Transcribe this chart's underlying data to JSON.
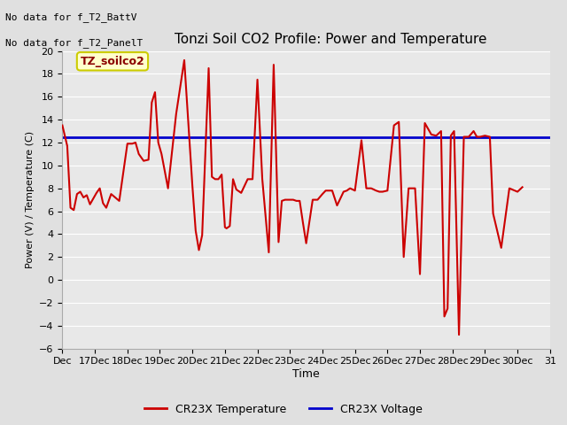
{
  "title": "Tonzi Soil CO2 Profile: Power and Temperature",
  "ylabel": "Power (V) / Temperature (C)",
  "xlabel": "Time",
  "no_data_text_1": "No data for f_T2_BattV",
  "no_data_text_2": "No data for f_T2_PanelT",
  "legend_label_box": "TZ_soilco2",
  "ylim": [
    -6,
    20
  ],
  "yticks": [
    -6,
    -4,
    -2,
    0,
    2,
    4,
    6,
    8,
    10,
    12,
    14,
    16,
    18,
    20
  ],
  "xtick_labels": [
    "Dec",
    "17Dec",
    "18Dec",
    "19Dec",
    "20Dec",
    "21Dec",
    "22Dec",
    "23Dec",
    "24Dec",
    "25Dec",
    "26Dec",
    "27Dec",
    "28Dec",
    "29Dec",
    "30Dec",
    "31"
  ],
  "bg_color": "#e0e0e0",
  "plot_bg_color": "#e8e8e8",
  "grid_color": "#ffffff",
  "voltage_value": 12.5,
  "voltage_color": "#0000cc",
  "temp_color": "#cc0000",
  "legend_temp": "CR23X Temperature",
  "legend_volt": "CR23X Voltage",
  "temp_x": [
    0.0,
    0.15,
    0.25,
    0.35,
    0.45,
    0.55,
    0.65,
    0.75,
    0.85,
    0.95,
    1.05,
    1.15,
    1.25,
    1.35,
    1.5,
    1.75,
    2.0,
    2.15,
    2.25,
    2.35,
    2.5,
    2.65,
    2.75,
    2.85,
    2.95,
    3.05,
    3.25,
    3.5,
    3.75,
    4.0,
    4.1,
    4.2,
    4.3,
    4.5,
    4.6,
    4.7,
    4.8,
    4.9,
    5.0,
    5.05,
    5.1,
    5.15,
    5.25,
    5.35,
    5.5,
    5.7,
    5.85,
    6.0,
    6.15,
    6.35,
    6.5,
    6.65,
    6.75,
    6.85,
    7.0,
    7.1,
    7.2,
    7.3,
    7.4,
    7.5,
    7.7,
    7.85,
    8.0,
    8.1,
    8.2,
    8.3,
    8.45,
    8.55,
    8.65,
    8.75,
    8.85,
    9.0,
    9.2,
    9.35,
    9.5,
    9.65,
    9.75,
    9.85,
    10.0,
    10.2,
    10.35,
    10.5,
    10.65,
    10.75,
    10.85,
    11.0,
    11.15,
    11.25,
    11.35,
    11.5,
    11.65,
    11.75,
    11.85,
    11.95,
    12.05,
    12.2,
    12.35,
    12.5,
    12.65,
    12.75,
    12.85,
    13.0,
    13.15,
    13.25,
    13.5,
    13.75,
    14.0,
    14.15
  ],
  "temp_y": [
    13.5,
    11.7,
    6.3,
    6.1,
    7.5,
    7.7,
    7.2,
    7.4,
    6.6,
    7.1,
    7.6,
    8.0,
    6.7,
    6.3,
    7.5,
    6.9,
    11.9,
    11.9,
    12.0,
    11.0,
    10.4,
    10.5,
    15.5,
    16.4,
    12.0,
    11.0,
    8.0,
    14.5,
    19.2,
    8.2,
    4.3,
    2.6,
    3.9,
    18.5,
    9.0,
    8.8,
    8.8,
    9.2,
    4.6,
    4.5,
    4.6,
    4.7,
    8.8,
    7.9,
    7.6,
    8.8,
    8.8,
    17.5,
    8.8,
    2.4,
    18.8,
    3.3,
    6.9,
    7.0,
    7.0,
    7.0,
    6.9,
    6.9,
    5.0,
    3.2,
    7.0,
    7.0,
    7.5,
    7.8,
    7.8,
    7.8,
    6.5,
    7.1,
    7.7,
    7.8,
    8.0,
    7.8,
    12.2,
    8.0,
    8.0,
    7.8,
    7.7,
    7.7,
    7.8,
    13.5,
    13.8,
    2.0,
    8.0,
    8.0,
    8.0,
    0.5,
    13.7,
    13.2,
    12.7,
    12.6,
    13.0,
    -3.2,
    -2.5,
    12.6,
    13.0,
    -4.8,
    12.5,
    12.5,
    13.0,
    12.5,
    12.5,
    12.6,
    12.5,
    5.8,
    2.8,
    8.0,
    7.7,
    8.1
  ]
}
